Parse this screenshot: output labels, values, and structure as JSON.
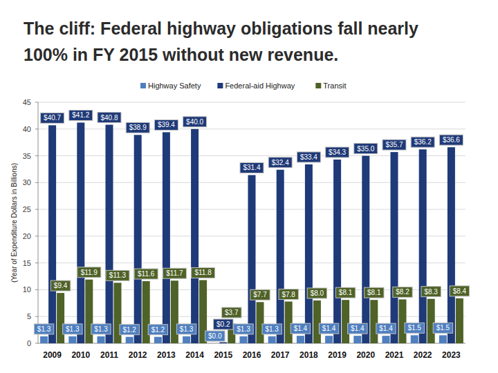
{
  "chart_data": {
    "type": "bar",
    "title": "The cliff: Federal highway obligations fall nearly 100% in FY 2015 without new revenue.",
    "y_label": "(Year of Expenditure Dollars in Billions)",
    "categories": [
      "2009",
      "2010",
      "2011",
      "2012",
      "2013",
      "2014",
      "2015",
      "2016",
      "2017",
      "2018",
      "2019",
      "2020",
      "2021",
      "2022",
      "2023"
    ],
    "series": [
      {
        "name": "Highway Safety",
        "color": "#4f7fbf",
        "values": [
          1.3,
          1.3,
          1.3,
          1.2,
          1.2,
          1.3,
          0.0,
          1.3,
          1.3,
          1.4,
          1.4,
          1.4,
          1.4,
          1.5,
          1.5
        ],
        "value_labels": [
          "$1.3",
          "$1.3",
          "$1.3",
          "$1.2",
          "$1.2",
          "$1.3",
          "$0.0",
          "$1.3",
          "$1.3",
          "$1.4",
          "$1.4",
          "$1.4",
          "$1.4",
          "$1.5",
          "$1.5"
        ]
      },
      {
        "name": "Federal-aid Highway",
        "color": "#1f3a78",
        "values": [
          40.7,
          41.2,
          40.8,
          38.9,
          39.4,
          40.0,
          0.2,
          31.4,
          32.4,
          33.4,
          34.3,
          35.0,
          35.7,
          36.2,
          36.6
        ],
        "value_labels": [
          "$40.7",
          "$41.2",
          "$40.8",
          "$38.9",
          "$39.4",
          "$40.0",
          "$0.2",
          "$31.4",
          "$32.4",
          "$33.4",
          "$34.3",
          "$35.0",
          "$35.7",
          "$36.2",
          "$36.6"
        ]
      },
      {
        "name": "Transit",
        "color": "#4f6228",
        "values": [
          9.4,
          11.9,
          11.3,
          11.6,
          11.7,
          11.8,
          3.7,
          7.7,
          7.8,
          8.0,
          8.1,
          8.1,
          8.2,
          8.3,
          8.4
        ],
        "value_labels": [
          "$9.4",
          "$11.9",
          "$11.3",
          "$11.6",
          "$11.7",
          "$11.8",
          "$3.7",
          "$7.7",
          "$7.8",
          "$8.0",
          "$8.1",
          "$8.1",
          "$8.2",
          "$8.3",
          "$8.4"
        ]
      }
    ],
    "ylim": [
      0,
      45
    ],
    "yticks": [
      0,
      5,
      10,
      15,
      20,
      25,
      30,
      35,
      40,
      45
    ],
    "grid": true,
    "legend": "top",
    "data_labels": true
  }
}
